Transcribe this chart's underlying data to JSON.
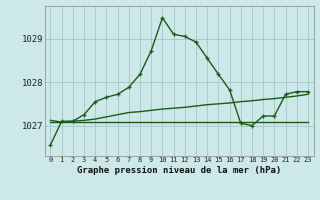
{
  "bg_color": "#cce8e8",
  "grid_color": "#aacaca",
  "line_color": "#1a5c1a",
  "title": "Graphe pression niveau de la mer (hPa)",
  "xlim": [
    -0.5,
    23.5
  ],
  "ylim": [
    1026.3,
    1029.75
  ],
  "yticks": [
    1027,
    1028,
    1029
  ],
  "xtick_labels": [
    "0",
    "1",
    "2",
    "3",
    "4",
    "5",
    "6",
    "7",
    "8",
    "9",
    "10",
    "11",
    "12",
    "13",
    "14",
    "15",
    "16",
    "17",
    "18",
    "19",
    "20",
    "21",
    "22",
    "23"
  ],
  "series1_x": [
    0,
    1,
    2,
    3,
    4,
    5,
    6,
    7,
    8,
    9,
    10,
    11,
    12,
    13,
    14,
    15,
    16,
    17,
    18,
    19,
    20,
    21,
    22,
    23
  ],
  "series1_y": [
    1026.55,
    1027.1,
    1027.1,
    1027.25,
    1027.55,
    1027.65,
    1027.72,
    1027.88,
    1028.18,
    1028.72,
    1029.48,
    1029.1,
    1029.05,
    1028.92,
    1028.55,
    1028.18,
    1027.82,
    1027.05,
    1027.0,
    1027.22,
    1027.22,
    1027.72,
    1027.78,
    1027.78
  ],
  "series2_x": [
    0,
    1,
    2,
    3,
    4,
    5,
    6,
    7,
    8,
    9,
    10,
    11,
    12,
    13,
    14,
    15,
    16,
    17,
    18,
    19,
    20,
    21,
    22,
    23
  ],
  "series2_y": [
    1027.12,
    1027.08,
    1027.1,
    1027.12,
    1027.15,
    1027.2,
    1027.25,
    1027.3,
    1027.32,
    1027.35,
    1027.38,
    1027.4,
    1027.42,
    1027.45,
    1027.48,
    1027.5,
    1027.52,
    1027.55,
    1027.57,
    1027.6,
    1027.62,
    1027.65,
    1027.68,
    1027.72
  ],
  "series3_x": [
    0,
    23
  ],
  "series3_y": [
    1027.08,
    1027.08
  ],
  "title_fontsize": 6.5,
  "ytick_fontsize": 6.5,
  "xtick_fontsize": 5.0
}
